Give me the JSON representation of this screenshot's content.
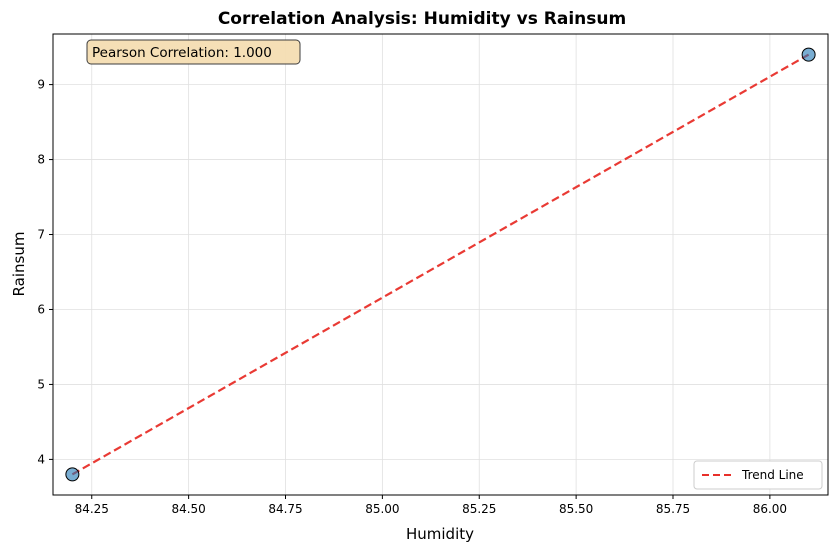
{
  "chart_data": {
    "type": "scatter",
    "title": "Correlation Analysis: Humidity vs Rainsum",
    "xlabel": "Humidity",
    "ylabel": "Rainsum",
    "xlim": [
      84.15,
      86.15
    ],
    "ylim": [
      3.525,
      9.675
    ],
    "x_ticks": [
      84.25,
      84.5,
      84.75,
      85.0,
      85.25,
      85.5,
      85.75,
      86.0
    ],
    "x_tick_labels": [
      "84.25",
      "84.50",
      "84.75",
      "85.00",
      "85.25",
      "85.50",
      "85.75",
      "86.00"
    ],
    "y_ticks": [
      4,
      5,
      6,
      7,
      8,
      9
    ],
    "y_tick_labels": [
      "4",
      "5",
      "6",
      "7",
      "8",
      "9"
    ],
    "grid": true,
    "points": [
      {
        "x": 84.2,
        "y": 3.8
      },
      {
        "x": 86.1,
        "y": 9.4
      }
    ],
    "trend_line": {
      "x": [
        84.2,
        86.1
      ],
      "y": [
        3.8,
        9.4
      ]
    },
    "annotation": "Pearson Correlation: 1.000",
    "legend": {
      "position": "bottom-right",
      "entries": [
        "Trend Line"
      ]
    },
    "colors": {
      "point_fill": "#1f77b4",
      "point_edge": "#000000",
      "trend_line": "#e8302a",
      "annotation_bg": "#f5deb3",
      "grid": "#e0e0e0"
    }
  }
}
